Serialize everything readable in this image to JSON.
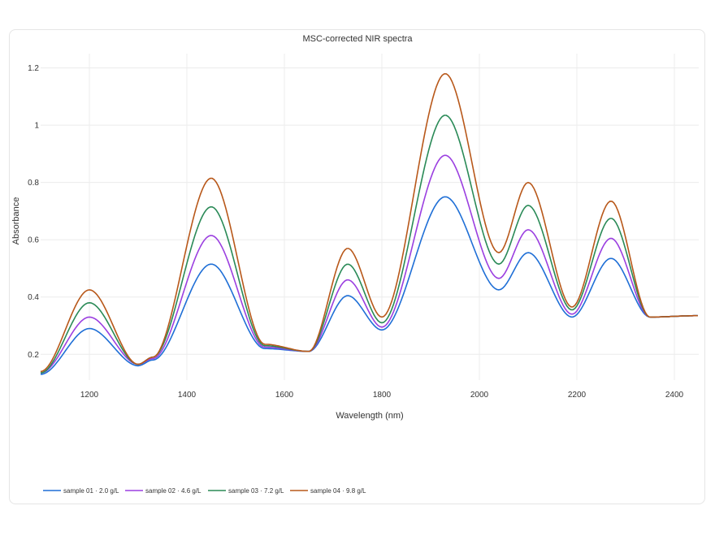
{
  "chart_data": {
    "type": "line",
    "title": "MSC-corrected NIR spectra",
    "xlabel": "Wavelength (nm)",
    "ylabel": "Absorbance",
    "xlim": [
      1100,
      2450
    ],
    "ylim": [
      0.11,
      1.25
    ],
    "xticks": [
      1200,
      1400,
      1600,
      1800,
      2000,
      2200,
      2400
    ],
    "yticks": [
      0.2,
      0.4,
      0.6,
      0.8,
      1,
      1.2
    ],
    "ytick_labels": [
      "0.2",
      "0.4",
      "0.6",
      "0.8",
      "1",
      "1.2"
    ],
    "grid": true,
    "legend_position": "bottom",
    "x": [
      1100,
      1200,
      1300,
      1330,
      1450,
      1560,
      1650,
      1730,
      1800,
      1930,
      2040,
      2100,
      2190,
      2270,
      2350,
      2450
    ],
    "series": [
      {
        "name": "sample 01 · 2.0 g/L",
        "color": "#1f6fd6",
        "values": [
          0.13,
          0.29,
          0.16,
          0.18,
          0.515,
          0.22,
          0.21,
          0.405,
          0.285,
          0.75,
          0.425,
          0.555,
          0.33,
          0.535,
          0.33,
          0.335
        ]
      },
      {
        "name": "sample 02 · 4.6 g/L",
        "color": "#9b3fe0",
        "values": [
          0.135,
          0.33,
          0.165,
          0.185,
          0.615,
          0.225,
          0.21,
          0.46,
          0.295,
          0.895,
          0.465,
          0.635,
          0.34,
          0.605,
          0.33,
          0.335
        ]
      },
      {
        "name": "sample 03 · 7.2 g/L",
        "color": "#2a8a57",
        "values": [
          0.135,
          0.38,
          0.165,
          0.19,
          0.715,
          0.23,
          0.21,
          0.515,
          0.31,
          1.035,
          0.515,
          0.72,
          0.355,
          0.675,
          0.33,
          0.335
        ]
      },
      {
        "name": "sample 04 · 9.8 g/L",
        "color": "#b8581a",
        "values": [
          0.14,
          0.425,
          0.165,
          0.19,
          0.815,
          0.235,
          0.21,
          0.57,
          0.33,
          1.18,
          0.555,
          0.8,
          0.365,
          0.735,
          0.33,
          0.335
        ]
      }
    ]
  }
}
